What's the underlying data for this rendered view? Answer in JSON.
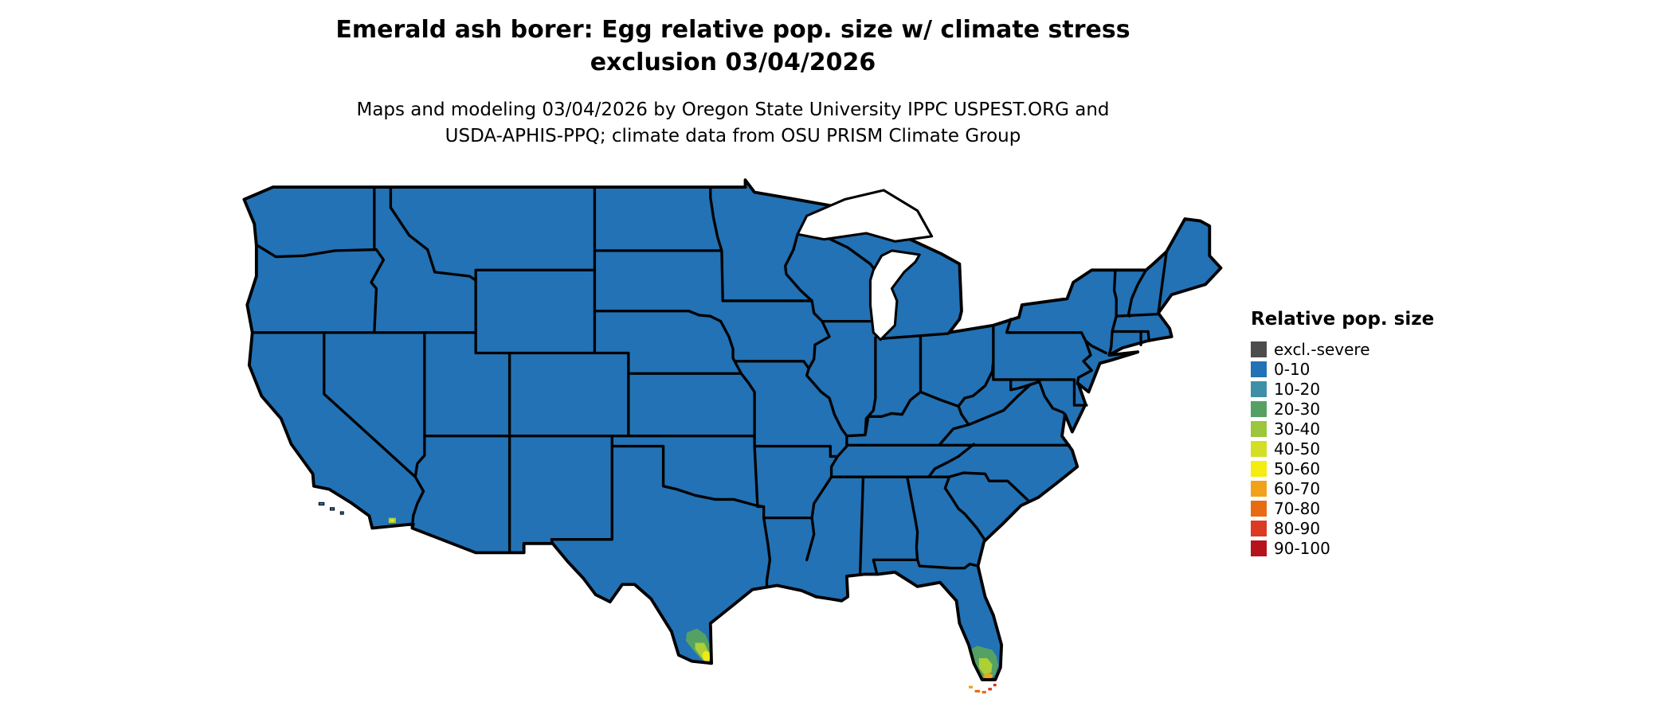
{
  "title": {
    "line1": "Emerald ash borer: Egg relative pop. size w/ climate stress",
    "line2": "exclusion 03/04/2026"
  },
  "subtitle": {
    "line1": "Maps and modeling 03/04/2026 by Oregon State University IPPC USPEST.ORG and",
    "line2": "USDA-APHIS-PPQ; climate data from OSU PRISM Climate Group"
  },
  "legend": {
    "title": "Relative pop. size",
    "items": [
      {
        "label": "excl.-severe",
        "color": "#4d4d4d"
      },
      {
        "label": "0-10",
        "color": "#2272b5"
      },
      {
        "label": "10-20",
        "color": "#3f8fa8"
      },
      {
        "label": "20-30",
        "color": "#55a164"
      },
      {
        "label": "30-40",
        "color": "#9cc63c"
      },
      {
        "label": "40-50",
        "color": "#d3df26"
      },
      {
        "label": "50-60",
        "color": "#f5ec12"
      },
      {
        "label": "60-70",
        "color": "#f2a21a"
      },
      {
        "label": "70-80",
        "color": "#e86b12"
      },
      {
        "label": "80-90",
        "color": "#dc3a22"
      },
      {
        "label": "90-100",
        "color": "#b5121b"
      }
    ]
  },
  "map": {
    "region": "Continental United States",
    "base_fill": "#2272b5",
    "border_color": "#000000",
    "water_color": "#ffffff",
    "hotspot_colors": {
      "green": "#55a164",
      "yellow_green": "#aecf36",
      "yellow": "#f2ea15",
      "orange": "#f2a21a",
      "deep_orange": "#e86b12",
      "red": "#d7301f"
    },
    "hotspots": [
      {
        "region": "south-texas"
      },
      {
        "region": "salton-trough-california"
      },
      {
        "region": "south-florida"
      },
      {
        "region": "florida-keys"
      }
    ]
  }
}
